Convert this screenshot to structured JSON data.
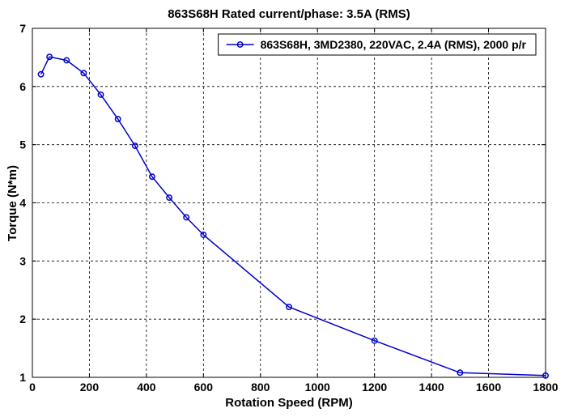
{
  "chart_data": {
    "type": "line",
    "title": "863S68H Rated current/phase: 3.5A (RMS)",
    "xlabel": "Rotation Speed (RPM)",
    "ylabel": "Torque (N*m)",
    "xlim": [
      0,
      1800
    ],
    "ylim": [
      1,
      7
    ],
    "xticks": [
      "0",
      "200",
      "400",
      "600",
      "800",
      "1000",
      "1200",
      "1400",
      "1600",
      "1800"
    ],
    "yticks": [
      "1",
      "2",
      "3",
      "4",
      "5",
      "6",
      "7"
    ],
    "grid": true,
    "legend_position": "top-right",
    "series": [
      {
        "name": "863S68H, 3MD2380, 220VAC, 2.4A (RMS), 2000 p/r",
        "color": "#0000cc",
        "marker": "circle",
        "x": [
          30,
          60,
          120,
          180,
          240,
          300,
          360,
          420,
          480,
          540,
          600,
          900,
          1200,
          1500,
          1800
        ],
        "y": [
          6.21,
          6.51,
          6.45,
          6.23,
          5.86,
          5.44,
          4.98,
          4.45,
          4.09,
          3.75,
          3.45,
          2.21,
          1.63,
          1.08,
          1.03
        ]
      }
    ]
  }
}
